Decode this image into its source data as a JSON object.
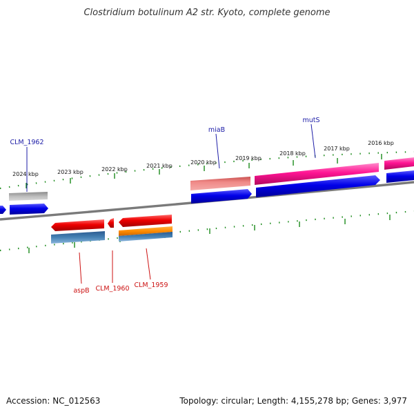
{
  "title": "Clostridium botulinum A2 str. Kyoto, complete genome",
  "footer": {
    "accession": "Accession: NC_012563",
    "summary": "Topology: circular; Length: 4,155,278 bp; Genes: 3,977"
  },
  "ticks": [
    "2024 kbp",
    "2023 kbp",
    "2022 kbp",
    "2021 kbp",
    "2020 kbp",
    "2019 kbp",
    "2018 kbp",
    "2017 kbp",
    "2016 kbp"
  ],
  "genes_top": [
    "CLM_1962",
    "miaB",
    "mutS"
  ],
  "genes_bottom": [
    "aspB",
    "CLM_1960",
    "CLM_1959"
  ],
  "colors": {
    "backbone": "#7a7a7a",
    "tick": "#1a8a1a",
    "blue": "#0a0ae6",
    "red": "#ee1111",
    "magenta": "#ff1493",
    "salmon": "#e87a78",
    "gray": "#b4b4b4",
    "steel": "#4682b4",
    "orange": "#ff8c00"
  }
}
